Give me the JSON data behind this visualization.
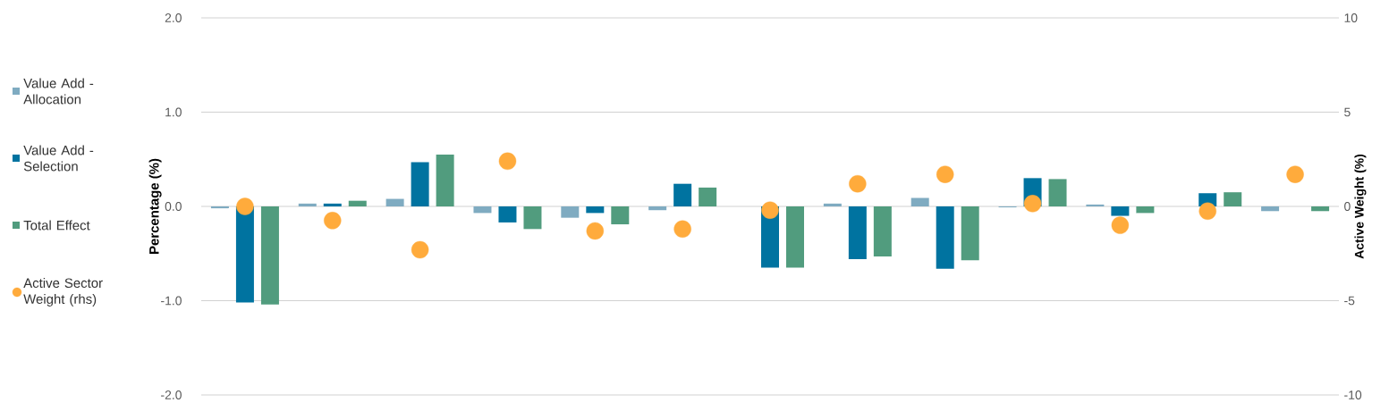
{
  "chart_data": {
    "type": "bar",
    "categories": [
      null,
      null,
      null,
      null,
      null,
      null,
      null,
      null,
      null,
      null,
      null,
      null,
      null
    ],
    "ylabel": "Percentage (%)",
    "y2label": "Active Weight (%)",
    "ylim": [
      -2,
      2
    ],
    "yticks": [
      {
        "value": -2,
        "label": "-2.0"
      },
      {
        "value": -1,
        "label": "-1.0"
      },
      {
        "value": 0,
        "label": "0.0"
      },
      {
        "value": 1,
        "label": "1.0"
      },
      {
        "value": 2,
        "label": "2.0"
      }
    ],
    "y2lim": [
      -10,
      10
    ],
    "y2ticks": [
      -10,
      -5,
      0,
      5,
      10
    ],
    "grid": "y",
    "legend": "left",
    "series": [
      {
        "name": "Value Add - Allocation",
        "color": "#7fabc1",
        "values": [
          -0.02,
          0.03,
          0.08,
          -0.07,
          -0.12,
          -0.04,
          0,
          0.03,
          0.09,
          -0.01,
          0.02,
          0,
          -0.05
        ]
      },
      {
        "name": "Value Add - Selection",
        "color": "#0073a0",
        "values": [
          -1.02,
          0.03,
          0.47,
          -0.17,
          -0.07,
          0.24,
          -0.65,
          -0.56,
          -0.66,
          0.3,
          -0.1,
          0.14,
          0
        ]
      },
      {
        "name": "Total Effect",
        "color": "#519c7e",
        "values": [
          -1.04,
          0.06,
          0.55,
          -0.24,
          -0.19,
          0.2,
          -0.65,
          -0.53,
          -0.57,
          0.29,
          -0.07,
          0.15,
          -0.05
        ]
      },
      {
        "name": "Active Sector Weight (rhs)",
        "type": "scatter",
        "axis": "y2",
        "marker": "circle",
        "color": "#ffab3c",
        "values": [
          0.0,
          -0.75,
          -2.3,
          2.4,
          -1.3,
          -1.2,
          -0.2,
          1.2,
          1.7,
          0.15,
          -1.0,
          -0.25,
          1.7
        ]
      }
    ]
  }
}
